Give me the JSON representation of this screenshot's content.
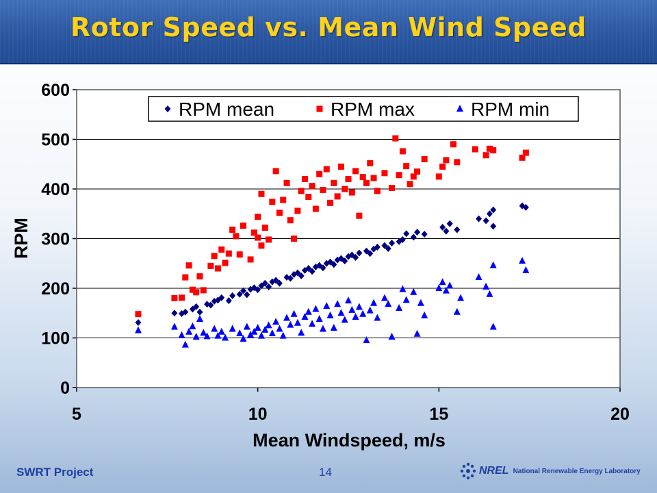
{
  "slide": {
    "title": "Rotor Speed vs. Mean Wind Speed",
    "footer_left": "SWRT Project",
    "page_number": "14",
    "logo_mark": "NREL",
    "logo_text": "National Renewable Energy Laboratory"
  },
  "colors": {
    "title": "#ffd11a",
    "mean": "#000080",
    "max": "#ff0000",
    "min": "#0000ff"
  },
  "chart_data": {
    "type": "scatter",
    "title": "",
    "xlabel": "Mean Windspeed, m/s",
    "ylabel": "RPM",
    "xlim": [
      5,
      20
    ],
    "ylim": [
      0,
      600
    ],
    "xticks": [
      5,
      10,
      15,
      20
    ],
    "yticks": [
      0,
      100,
      200,
      300,
      400,
      500,
      600
    ],
    "grid": "horizontal",
    "legend_position": "top",
    "series": [
      {
        "name": "RPM mean",
        "marker": "diamond",
        "points": [
          [
            6.7,
            131
          ],
          [
            7.7,
            150
          ],
          [
            7.9,
            149
          ],
          [
            8.0,
            152
          ],
          [
            8.2,
            158
          ],
          [
            8.3,
            163
          ],
          [
            8.4,
            152
          ],
          [
            8.6,
            168
          ],
          [
            8.7,
            166
          ],
          [
            8.8,
            174
          ],
          [
            8.9,
            176
          ],
          [
            9.0,
            181
          ],
          [
            9.2,
            175
          ],
          [
            9.3,
            185
          ],
          [
            9.5,
            188
          ],
          [
            9.6,
            195
          ],
          [
            9.7,
            187
          ],
          [
            9.8,
            198
          ],
          [
            9.9,
            201
          ],
          [
            10.0,
            197
          ],
          [
            10.1,
            205
          ],
          [
            10.2,
            210
          ],
          [
            10.3,
            203
          ],
          [
            10.4,
            213
          ],
          [
            10.5,
            216
          ],
          [
            10.6,
            210
          ],
          [
            10.8,
            222
          ],
          [
            10.9,
            220
          ],
          [
            11.0,
            228
          ],
          [
            11.1,
            231
          ],
          [
            11.2,
            225
          ],
          [
            11.3,
            236
          ],
          [
            11.4,
            240
          ],
          [
            11.5,
            234
          ],
          [
            11.6,
            243
          ],
          [
            11.7,
            246
          ],
          [
            11.8,
            241
          ],
          [
            11.9,
            250
          ],
          [
            12.0,
            253
          ],
          [
            12.1,
            248
          ],
          [
            12.2,
            257
          ],
          [
            12.3,
            260
          ],
          [
            12.4,
            255
          ],
          [
            12.5,
            264
          ],
          [
            12.6,
            267
          ],
          [
            12.7,
            262
          ],
          [
            12.8,
            271
          ],
          [
            13.0,
            275
          ],
          [
            13.1,
            270
          ],
          [
            13.2,
            279
          ],
          [
            13.3,
            283
          ],
          [
            13.5,
            286
          ],
          [
            13.6,
            280
          ],
          [
            13.7,
            291
          ],
          [
            13.9,
            294
          ],
          [
            14.0,
            298
          ],
          [
            14.1,
            310
          ],
          [
            14.3,
            303
          ],
          [
            14.4,
            313
          ],
          [
            14.6,
            309
          ],
          [
            15.1,
            323
          ],
          [
            15.2,
            315
          ],
          [
            15.3,
            330
          ],
          [
            15.5,
            318
          ],
          [
            16.1,
            340
          ],
          [
            16.3,
            336
          ],
          [
            16.4,
            350
          ],
          [
            16.5,
            358
          ],
          [
            16.5,
            325
          ],
          [
            17.3,
            366
          ],
          [
            17.4,
            363
          ]
        ]
      },
      {
        "name": "RPM max",
        "marker": "square",
        "points": [
          [
            6.7,
            148
          ],
          [
            7.7,
            180
          ],
          [
            7.9,
            181
          ],
          [
            8.0,
            222
          ],
          [
            8.1,
            246
          ],
          [
            8.2,
            197
          ],
          [
            8.3,
            192
          ],
          [
            8.4,
            224
          ],
          [
            8.5,
            196
          ],
          [
            8.7,
            245
          ],
          [
            8.8,
            265
          ],
          [
            8.9,
            240
          ],
          [
            9.0,
            278
          ],
          [
            9.1,
            251
          ],
          [
            9.2,
            270
          ],
          [
            9.3,
            318
          ],
          [
            9.4,
            305
          ],
          [
            9.5,
            268
          ],
          [
            9.6,
            326
          ],
          [
            9.8,
            258
          ],
          [
            9.9,
            312
          ],
          [
            10.0,
            302
          ],
          [
            10.0,
            344
          ],
          [
            10.1,
            286
          ],
          [
            10.1,
            390
          ],
          [
            10.2,
            322
          ],
          [
            10.3,
            298
          ],
          [
            10.4,
            374
          ],
          [
            10.5,
            436
          ],
          [
            10.6,
            352
          ],
          [
            10.7,
            378
          ],
          [
            10.8,
            412
          ],
          [
            10.9,
            337
          ],
          [
            11.0,
            300
          ],
          [
            11.1,
            356
          ],
          [
            11.2,
            396
          ],
          [
            11.3,
            420
          ],
          [
            11.4,
            384
          ],
          [
            11.5,
            406
          ],
          [
            11.6,
            360
          ],
          [
            11.7,
            430
          ],
          [
            11.8,
            398
          ],
          [
            11.9,
            440
          ],
          [
            12.0,
            372
          ],
          [
            12.1,
            412
          ],
          [
            12.2,
            385
          ],
          [
            12.3,
            445
          ],
          [
            12.4,
            400
          ],
          [
            12.5,
            420
          ],
          [
            12.6,
            393
          ],
          [
            12.7,
            436
          ],
          [
            12.8,
            346
          ],
          [
            12.9,
            424
          ],
          [
            13.0,
            412
          ],
          [
            13.1,
            452
          ],
          [
            13.2,
            422
          ],
          [
            13.3,
            396
          ],
          [
            13.5,
            432
          ],
          [
            13.7,
            402
          ],
          [
            13.8,
            502
          ],
          [
            13.9,
            428
          ],
          [
            14.0,
            476
          ],
          [
            14.1,
            446
          ],
          [
            14.2,
            410
          ],
          [
            14.3,
            425
          ],
          [
            14.4,
            435
          ],
          [
            14.6,
            460
          ],
          [
            15.0,
            425
          ],
          [
            15.1,
            445
          ],
          [
            15.2,
            458
          ],
          [
            15.4,
            490
          ],
          [
            15.5,
            454
          ],
          [
            16.0,
            480
          ],
          [
            16.3,
            468
          ],
          [
            16.4,
            481
          ],
          [
            16.5,
            478
          ],
          [
            17.3,
            463
          ],
          [
            17.4,
            473
          ]
        ]
      },
      {
        "name": "RPM min",
        "marker": "triangle",
        "points": [
          [
            6.7,
            115
          ],
          [
            7.7,
            122
          ],
          [
            7.9,
            105
          ],
          [
            8.0,
            86
          ],
          [
            8.1,
            112
          ],
          [
            8.2,
            123
          ],
          [
            8.3,
            102
          ],
          [
            8.4,
            138
          ],
          [
            8.5,
            110
          ],
          [
            8.6,
            103
          ],
          [
            8.8,
            118
          ],
          [
            8.9,
            104
          ],
          [
            9.0,
            112
          ],
          [
            9.1,
            100
          ],
          [
            9.3,
            118
          ],
          [
            9.5,
            109
          ],
          [
            9.6,
            98
          ],
          [
            9.7,
            122
          ],
          [
            9.8,
            106
          ],
          [
            9.9,
            112
          ],
          [
            10.0,
            120
          ],
          [
            10.1,
            104
          ],
          [
            10.2,
            116
          ],
          [
            10.3,
            125
          ],
          [
            10.4,
            109
          ],
          [
            10.5,
            132
          ],
          [
            10.6,
            118
          ],
          [
            10.7,
            104
          ],
          [
            10.8,
            140
          ],
          [
            10.9,
            126
          ],
          [
            11.0,
            148
          ],
          [
            11.1,
            130
          ],
          [
            11.2,
            110
          ],
          [
            11.3,
            142
          ],
          [
            11.4,
            152
          ],
          [
            11.5,
            128
          ],
          [
            11.6,
            158
          ],
          [
            11.7,
            138
          ],
          [
            11.8,
            118
          ],
          [
            11.9,
            164
          ],
          [
            12.0,
            145
          ],
          [
            12.1,
            120
          ],
          [
            12.2,
            168
          ],
          [
            12.3,
            150
          ],
          [
            12.4,
            136
          ],
          [
            12.5,
            175
          ],
          [
            12.6,
            156
          ],
          [
            12.7,
            142
          ],
          [
            12.8,
            162
          ],
          [
            12.9,
            148
          ],
          [
            13.0,
            95
          ],
          [
            13.1,
            155
          ],
          [
            13.2,
            170
          ],
          [
            13.3,
            140
          ],
          [
            13.5,
            180
          ],
          [
            13.6,
            168
          ],
          [
            13.7,
            102
          ],
          [
            13.9,
            160
          ],
          [
            14.0,
            198
          ],
          [
            14.1,
            176
          ],
          [
            14.3,
            192
          ],
          [
            14.4,
            108
          ],
          [
            14.5,
            170
          ],
          [
            14.6,
            145
          ],
          [
            15.0,
            200
          ],
          [
            15.1,
            212
          ],
          [
            15.2,
            195
          ],
          [
            15.3,
            205
          ],
          [
            15.5,
            152
          ],
          [
            15.6,
            180
          ],
          [
            16.1,
            222
          ],
          [
            16.3,
            203
          ],
          [
            16.4,
            188
          ],
          [
            16.5,
            246
          ],
          [
            16.5,
            122
          ],
          [
            17.3,
            255
          ],
          [
            17.4,
            236
          ]
        ]
      }
    ]
  }
}
